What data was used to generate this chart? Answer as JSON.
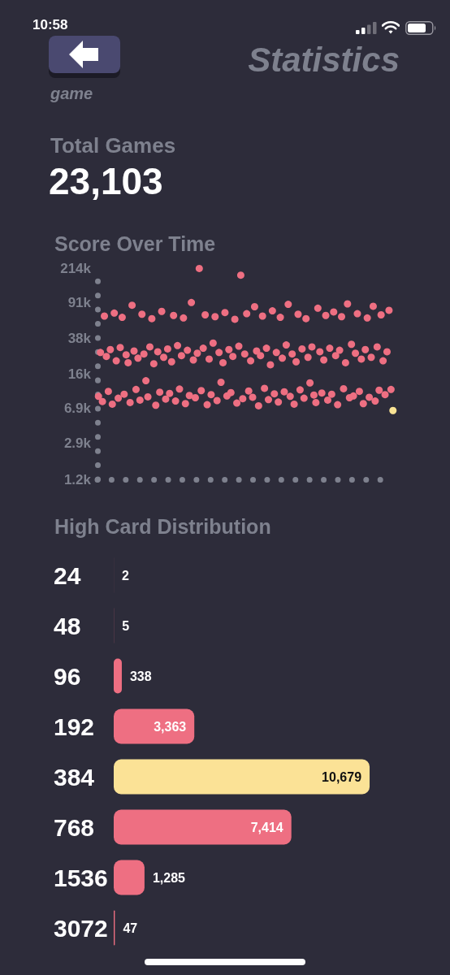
{
  "chart_data": [
    {
      "type": "other",
      "title": "Statistics",
      "annotations": [
        "10:58",
        "game",
        "Total Games",
        "23,103"
      ]
    },
    {
      "type": "scatter",
      "title": "Score Over Time",
      "categories": [
        null,
        null,
        null,
        null,
        null,
        null,
        null,
        null,
        null,
        null,
        null,
        null,
        null,
        null,
        null,
        null,
        null,
        null,
        null,
        null,
        null,
        null,
        null,
        null,
        null,
        null,
        null,
        null,
        null,
        null,
        null,
        null,
        null,
        null,
        null,
        null,
        null,
        null,
        null,
        null,
        null,
        null,
        null,
        null,
        null,
        null,
        null,
        null,
        null,
        null,
        null,
        null,
        null,
        null,
        null,
        null,
        null,
        null,
        null,
        null,
        null,
        null,
        null,
        null,
        null,
        null,
        null,
        null,
        null,
        null,
        null,
        null,
        null,
        null,
        null,
        null,
        null,
        null,
        null,
        null,
        null,
        null,
        null,
        null,
        null,
        null,
        null,
        null,
        null,
        null,
        null,
        null,
        null,
        null,
        null,
        null,
        null,
        null,
        null,
        null,
        null,
        null,
        null,
        null,
        null,
        null,
        null,
        null,
        null,
        null,
        null,
        null,
        null,
        null,
        null,
        null,
        null,
        null,
        null,
        null,
        null,
        null,
        null,
        null,
        null,
        null,
        null,
        null,
        null,
        null,
        null,
        null,
        null,
        null,
        null,
        null,
        null,
        null,
        null,
        null,
        null,
        null,
        null,
        null,
        null,
        null,
        null,
        null,
        null,
        null
      ],
      "values": [
        9200,
        27000,
        8100,
        66000,
        24500,
        10400,
        29000,
        7600,
        71000,
        22000,
        8800,
        30500,
        64000,
        9700,
        25500,
        21000,
        7900,
        86000,
        28000,
        10900,
        23500,
        8400,
        69000,
        26000,
        13500,
        9100,
        31000,
        62000,
        20500,
        7400,
        27500,
        10200,
        74000,
        24000,
        8600,
        29500,
        9900,
        21500,
        67000,
        8200,
        32000,
        11000,
        25000,
        63000,
        7700,
        28500,
        9400,
        92000,
        22500,
        8900,
        26500,
        212000,
        10600,
        30000,
        68000,
        7500,
        23000,
        9600,
        34000,
        65000,
        8300,
        27000,
        13000,
        21000,
        72000,
        9300,
        29000,
        10100,
        24500,
        61000,
        7800,
        31500,
        180000,
        8700,
        26000,
        70000,
        10500,
        22000,
        9000,
        83000,
        28000,
        7300,
        25000,
        66000,
        11200,
        30000,
        8500,
        20000,
        75000,
        9800,
        27000,
        8000,
        64000,
        23500,
        10300,
        32500,
        88000,
        9200,
        26000,
        7600,
        21500,
        69000,
        10800,
        29500,
        8800,
        62000,
        24000,
        12800,
        31000,
        9500,
        7900,
        80000,
        27500,
        10000,
        22500,
        67000,
        8400,
        30000,
        9700,
        73000,
        25000,
        7500,
        28500,
        65000,
        11100,
        21000,
        89000,
        8900,
        33000,
        9300,
        26500,
        70000,
        10400,
        23000,
        7700,
        29000,
        63000,
        9000,
        24000,
        84000,
        8200,
        31000,
        10700,
        68000,
        22000,
        9600,
        27500,
        76000,
        10900,
        6500
      ],
      "colors": [
        "#ee6f82",
        "#ee6f82",
        "#ee6f82",
        "#ee6f82",
        "#ee6f82",
        "#ee6f82",
        "#ee6f82",
        "#ee6f82",
        "#ee6f82",
        "#ee6f82",
        "#ee6f82",
        "#ee6f82",
        "#ee6f82",
        "#ee6f82",
        "#ee6f82",
        "#ee6f82",
        "#ee6f82",
        "#ee6f82",
        "#ee6f82",
        "#ee6f82",
        "#ee6f82",
        "#ee6f82",
        "#ee6f82",
        "#ee6f82",
        "#ee6f82",
        "#ee6f82",
        "#ee6f82",
        "#ee6f82",
        "#ee6f82",
        "#ee6f82",
        "#ee6f82",
        "#ee6f82",
        "#ee6f82",
        "#ee6f82",
        "#ee6f82",
        "#ee6f82",
        "#ee6f82",
        "#ee6f82",
        "#ee6f82",
        "#ee6f82",
        "#ee6f82",
        "#ee6f82",
        "#ee6f82",
        "#ee6f82",
        "#ee6f82",
        "#ee6f82",
        "#ee6f82",
        "#ee6f82",
        "#ee6f82",
        "#ee6f82",
        "#ee6f82",
        "#ee6f82",
        "#ee6f82",
        "#ee6f82",
        "#ee6f82",
        "#ee6f82",
        "#ee6f82",
        "#ee6f82",
        "#ee6f82",
        "#ee6f82",
        "#ee6f82",
        "#ee6f82",
        "#ee6f82",
        "#ee6f82",
        "#ee6f82",
        "#ee6f82",
        "#ee6f82",
        "#ee6f82",
        "#ee6f82",
        "#ee6f82",
        "#ee6f82",
        "#ee6f82",
        "#ee6f82",
        "#ee6f82",
        "#ee6f82",
        "#ee6f82",
        "#ee6f82",
        "#ee6f82",
        "#ee6f82",
        "#ee6f82",
        "#ee6f82",
        "#ee6f82",
        "#ee6f82",
        "#ee6f82",
        "#ee6f82",
        "#ee6f82",
        "#ee6f82",
        "#ee6f82",
        "#ee6f82",
        "#ee6f82",
        "#ee6f82",
        "#ee6f82",
        "#ee6f82",
        "#ee6f82",
        "#ee6f82",
        "#ee6f82",
        "#ee6f82",
        "#ee6f82",
        "#ee6f82",
        "#ee6f82",
        "#ee6f82",
        "#ee6f82",
        "#ee6f82",
        "#ee6f82",
        "#ee6f82",
        "#ee6f82",
        "#ee6f82",
        "#ee6f82",
        "#ee6f82",
        "#ee6f82",
        "#ee6f82",
        "#ee6f82",
        "#ee6f82",
        "#ee6f82",
        "#ee6f82",
        "#ee6f82",
        "#ee6f82",
        "#ee6f82",
        "#ee6f82",
        "#ee6f82",
        "#ee6f82",
        "#ee6f82",
        "#ee6f82",
        "#ee6f82",
        "#ee6f82",
        "#ee6f82",
        "#ee6f82",
        "#ee6f82",
        "#ee6f82",
        "#ee6f82",
        "#ee6f82",
        "#ee6f82",
        "#ee6f82",
        "#ee6f82",
        "#ee6f82",
        "#ee6f82",
        "#ee6f82",
        "#ee6f82",
        "#ee6f82",
        "#ee6f82",
        "#ee6f82",
        "#ee6f82",
        "#ee6f82",
        "#ee6f82",
        "#ee6f82",
        "#ee6f82",
        "#ee6f82",
        "#ee6f82",
        "#ee6f82",
        "#f9e394"
      ],
      "ylim": [
        1200,
        214000
      ],
      "yticks": [
        {
          "value": 1200,
          "label": "1.2k"
        },
        {
          "value": 2900,
          "label": "2.9k"
        },
        {
          "value": 6900,
          "label": "6.9k"
        },
        {
          "value": 16000,
          "label": "16k"
        },
        {
          "value": 38000,
          "label": "38k"
        },
        {
          "value": 91000,
          "label": "91k"
        },
        {
          "value": 214000,
          "label": "214k"
        }
      ],
      "log": "y",
      "grid": false,
      "tick_labels": "y",
      "marker": "circle"
    },
    {
      "type": "bar",
      "title": "High Card Distribution",
      "orientation": "horizontal",
      "categories": [
        "24",
        "48",
        "96",
        "192",
        "384",
        "768",
        "1536",
        "3072"
      ],
      "values": [
        2,
        5,
        338,
        3363,
        10679,
        7414,
        1285,
        47
      ],
      "value_labels": [
        "2",
        "5",
        "338",
        "3,363",
        "10,679",
        "7,414",
        "1,285",
        "47"
      ],
      "colors": [
        "#ee6f82",
        "#ee6f82",
        "#ee6f82",
        "#ee6f82",
        "#fbe296",
        "#ee6f82",
        "#ee6f82",
        "#ee6f82"
      ],
      "grid": false,
      "tick_labels": "y"
    }
  ]
}
